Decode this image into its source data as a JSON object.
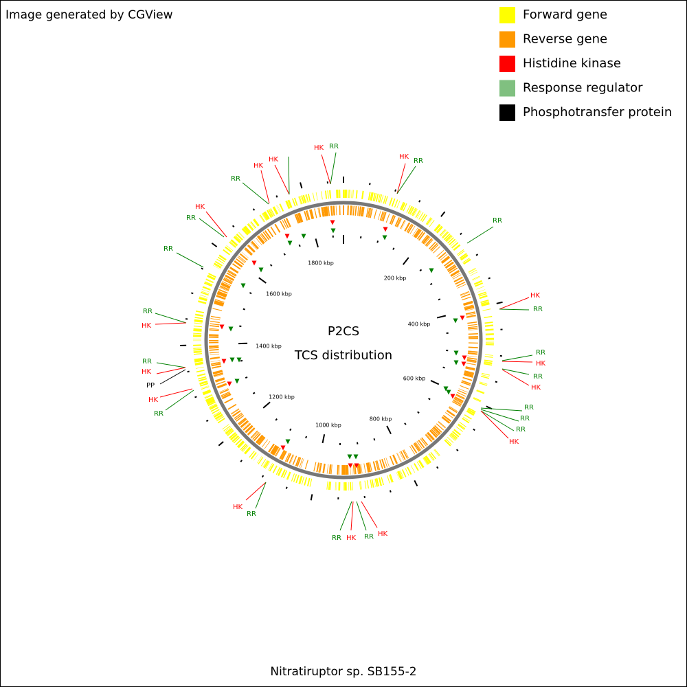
{
  "header": {
    "title": "Image generated by CGView"
  },
  "legend": [
    {
      "label": "Forward gene",
      "color": "#ffff00"
    },
    {
      "label": "Reverse gene",
      "color": "#ff9900"
    },
    {
      "label": "Histidine kinase",
      "color": "#ff0000"
    },
    {
      "label": "Response regulator",
      "color": "#80c080"
    },
    {
      "label": "Phosphotransfer protein",
      "color": "#000000"
    }
  ],
  "center": {
    "title": "P2CS",
    "subtitle": "TCS distribution"
  },
  "ruler_labels": [
    "200 kbp",
    "400 kbp",
    "600 kbp",
    "800 kbp",
    "1000 kbp",
    "1200 kbp",
    "1400 kbp",
    "1600 kbp",
    "1800 kbp"
  ],
  "callouts": [
    {
      "label": "HK",
      "color": "#ff0000"
    },
    {
      "label": "RR",
      "color": "#008000"
    },
    {
      "label": "HK",
      "color": "#ff0000"
    },
    {
      "label": "RR",
      "color": "#008000"
    },
    {
      "label": "RR",
      "color": "#008000"
    },
    {
      "label": "HK",
      "color": "#ff0000"
    },
    {
      "label": "RR",
      "color": "#008000"
    },
    {
      "label": "RR",
      "color": "#008000"
    },
    {
      "label": "HK",
      "color": "#ff0000"
    },
    {
      "label": "RR",
      "color": "#008000"
    },
    {
      "label": "HK",
      "color": "#ff0000"
    },
    {
      "label": "RR",
      "color": "#008000"
    },
    {
      "label": "RR",
      "color": "#008000"
    },
    {
      "label": "RR",
      "color": "#008000"
    },
    {
      "label": "HK",
      "color": "#ff0000"
    },
    {
      "label": "HK",
      "color": "#ff0000"
    },
    {
      "label": "RR",
      "color": "#008000"
    },
    {
      "label": "HK",
      "color": "#ff0000"
    },
    {
      "label": "RR",
      "color": "#008000"
    },
    {
      "label": "HK",
      "color": "#ff0000"
    },
    {
      "label": "RR",
      "color": "#008000"
    },
    {
      "label": "HK",
      "color": "#ff0000"
    },
    {
      "label": "RR",
      "color": "#008000"
    },
    {
      "label": "RR",
      "color": "#008000"
    },
    {
      "label": "HK",
      "color": "#ff0000"
    },
    {
      "label": "PP",
      "color": "#000000"
    },
    {
      "label": "RR",
      "color": "#008000"
    },
    {
      "label": "HK",
      "color": "#ff0000"
    },
    {
      "label": "RR",
      "color": "#008000"
    },
    {
      "label": "HK",
      "color": "#ff0000"
    },
    {
      "label": "RR",
      "color": "#008000"
    },
    {
      "label": "RR",
      "color": "#008000"
    },
    {
      "label": "HK",
      "color": "#ff0000"
    },
    {
      "label": "HK",
      "color": "#ff0000"
    }
  ],
  "footer": {
    "caption": "Nitratiruptor sp. SB155-2"
  }
}
